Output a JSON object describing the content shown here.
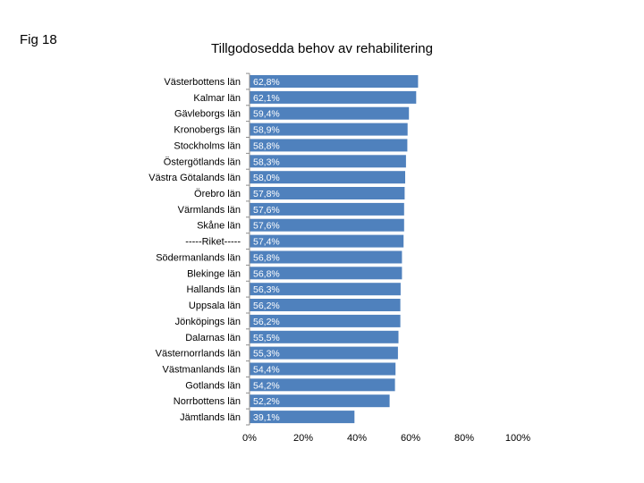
{
  "fig_label": "Fig 18",
  "chart_data": {
    "type": "bar",
    "orientation": "horizontal",
    "title": "Tillgodosedda behov av rehabilitering",
    "xlabel": "",
    "ylabel": "",
    "xlim": [
      0,
      100
    ],
    "x_ticks": [
      "0%",
      "20%",
      "40%",
      "60%",
      "80%",
      "100%"
    ],
    "grid": false,
    "bar_color": "#4f81bd",
    "categories": [
      "Västerbottens län",
      "Kalmar län",
      "Gävleborgs län",
      "Kronobergs län",
      "Stockholms län",
      "Östergötlands län",
      "Västra Götalands län",
      "Örebro län",
      "Värmlands län",
      "Skåne län",
      "-----Riket-----",
      "Södermanlands län",
      "Blekinge län",
      "Hallands län",
      "Uppsala län",
      "Jönköpings län",
      "Dalarnas län",
      "Västernorrlands län",
      "Västmanlands län",
      "Gotlands län",
      "Norrbottens län",
      "Jämtlands län"
    ],
    "values": [
      62.8,
      62.1,
      59.4,
      58.9,
      58.8,
      58.3,
      58.0,
      57.8,
      57.6,
      57.6,
      57.4,
      56.8,
      56.8,
      56.3,
      56.2,
      56.2,
      55.5,
      55.3,
      54.4,
      54.2,
      52.2,
      39.1
    ],
    "data_labels": [
      "62,8%",
      "62,1%",
      "59,4%",
      "58,9%",
      "58,8%",
      "58,3%",
      "58,0%",
      "57,8%",
      "57,6%",
      "57,6%",
      "57,4%",
      "56,8%",
      "56,8%",
      "56,3%",
      "56,2%",
      "56,2%",
      "55,5%",
      "55,3%",
      "54,4%",
      "54,2%",
      "52,2%",
      "39,1%"
    ]
  }
}
